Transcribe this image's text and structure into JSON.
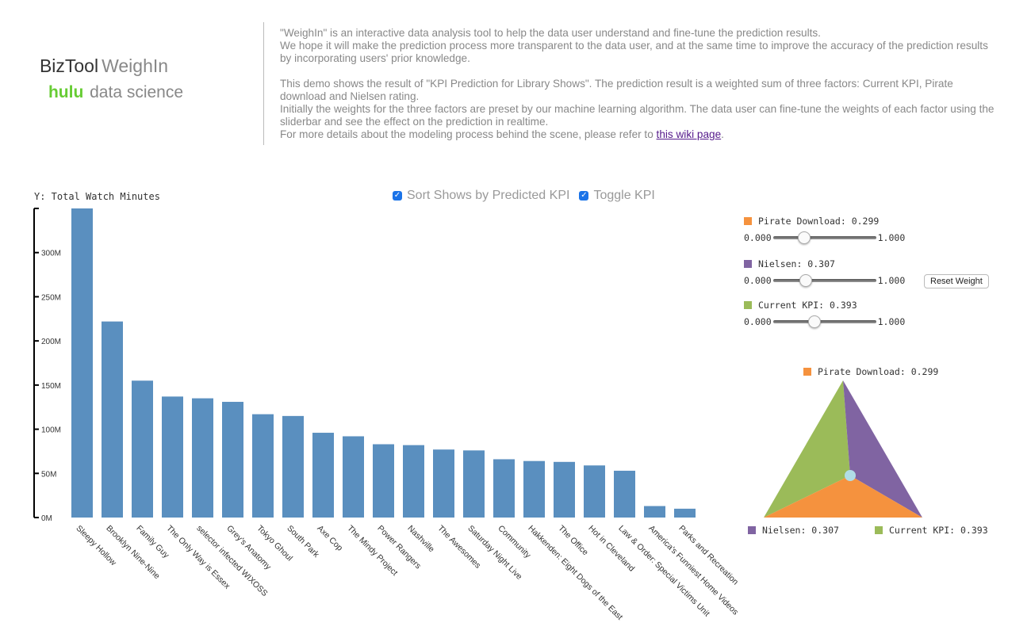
{
  "brand": {
    "biztool": "BizTool",
    "weighin": "WeighIn",
    "hulu": "hulu",
    "ds": "data science"
  },
  "description": {
    "p1": "\"WeighIn\" is an interactive data analysis tool to help the data user understand and fine-tune the prediction results.",
    "p2": "We hope it will make the prediction process more transparent to the data user, and at the same time to improve the accuracy of the prediction results by incorporating users' prior knowledge.",
    "p3": "This demo shows the result of \"KPI Prediction for Library Shows\". The prediction result is a weighted sum of three factors: Current KPI, Pirate download and Nielsen rating.",
    "p4": "Initially the weights for the three factors are preset by our machine learning algorithm. The data user can fine-tune the weights of each factor using the sliderbar and see the effect on the prediction in realtime.",
    "p5_prefix": "For more details about the modeling process behind the scene, please refer to ",
    "p5_link": "this wiki page",
    "p5_suffix": "."
  },
  "controls": {
    "sort_label": "Sort Shows by Predicted KPI",
    "sort_checked": true,
    "toggle_label": "Toggle KPI",
    "toggle_checked": true
  },
  "weights": {
    "min_label": "0.000",
    "max_label": "1.000",
    "reset_label": "Reset Weight",
    "items": [
      {
        "label": "Pirate Download: 0.299",
        "value": 0.299,
        "color": "#f5923e"
      },
      {
        "label": "Nielsen: 0.307",
        "value": 0.307,
        "color": "#8064a2"
      },
      {
        "label": "Current KPI: 0.393",
        "value": 0.393,
        "color": "#9bbb59"
      }
    ]
  },
  "triangle": {
    "top_label": "Pirate Download: 0.299",
    "left_label": "Nielsen: 0.307",
    "right_label": "Current KPI: 0.393",
    "marker_color": "#b0dde6"
  },
  "chart_data": {
    "type": "bar",
    "ylabel": "Y: Total Watch Minutes",
    "ylim": [
      0,
      350
    ],
    "yticks": [
      0,
      50,
      100,
      150,
      200,
      250,
      300
    ],
    "ytick_labels": [
      "0M",
      "50M",
      "100M",
      "150M",
      "200M",
      "250M",
      "300M"
    ],
    "bar_color": "#5a8fbf",
    "categories": [
      "Sleepy Hollow",
      "Brooklyn Nine-Nine",
      "Family Guy",
      "The Only Way is Essex",
      "selector infected WIXOSS",
      "Grey's Anatomy",
      "Tokyo Ghoul",
      "South Park",
      "Axe Cop",
      "The Mindy Project",
      "Power Rangers",
      "Nashville",
      "The Awesomes",
      "Saturday Night Live",
      "Community",
      "Hakkenden: Eight Dogs of the East",
      "The Office",
      "Hot in Cleveland",
      "Law & Order: Special Victims Unit",
      "America's Funniest Home Videos",
      "Parks and Recreation"
    ],
    "values": [
      350,
      222,
      155,
      137,
      135,
      131,
      117,
      115,
      96,
      92,
      83,
      82,
      77,
      76,
      66,
      64,
      63,
      59,
      53,
      13,
      10
    ]
  }
}
